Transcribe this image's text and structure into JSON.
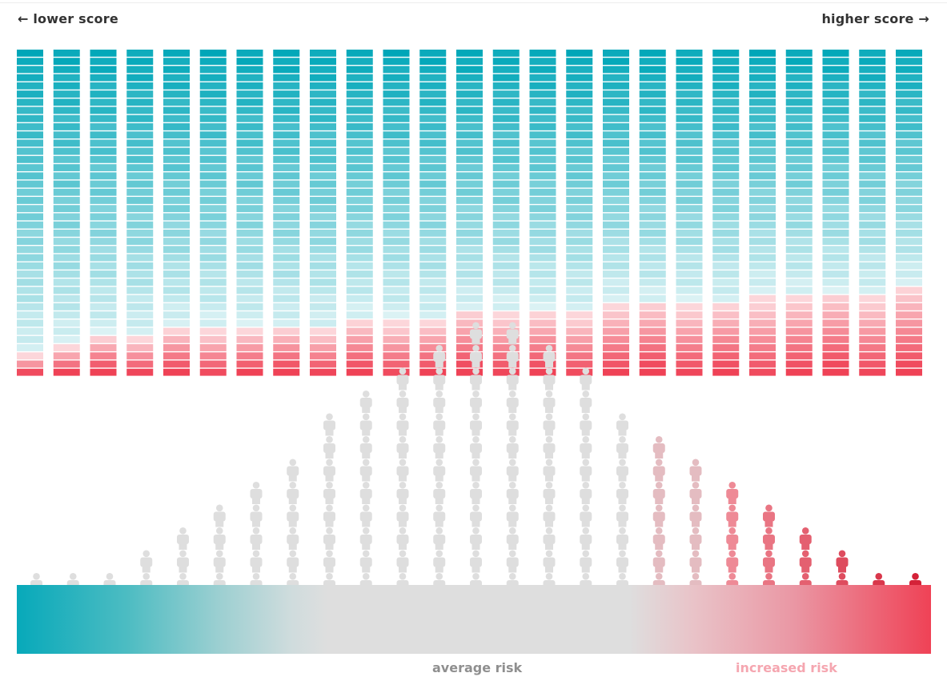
{
  "header": {
    "left_label": "← lower score",
    "right_label": "higher score →"
  },
  "footer": {
    "average_label": "average risk",
    "increased_label": "increased risk"
  },
  "colors": {
    "blue_dark": "#07a9ba",
    "blue_light": "#d3eff2",
    "red_light": "#fcd6da",
    "red_dark": "#ef4256",
    "grey": "#dedede",
    "pink_figure": "#e4bcc1"
  },
  "chart_data": {
    "type": "bar",
    "stacked_percent": true,
    "segments_per_bar": 40,
    "series": [
      {
        "name": "",
        "values": [
          8,
          10,
          12,
          12,
          14,
          14,
          14,
          16,
          16,
          18,
          18,
          18,
          20,
          20,
          20,
          20,
          22,
          22,
          22,
          22,
          24,
          24,
          24,
          26,
          28
        ]
      }
    ],
    "population": {
      "type": "figure_histogram",
      "counts": [
        1,
        1,
        1,
        2,
        3,
        4,
        5,
        6,
        8,
        9,
        10,
        11,
        12,
        12,
        11,
        10,
        8,
        7,
        6,
        5,
        4,
        3,
        2,
        1,
        1
      ],
      "color_groups": [
        "blue",
        "blue",
        "grey",
        "grey",
        "grey",
        "grey",
        "grey",
        "grey",
        "grey",
        "grey",
        "grey",
        "grey",
        "grey",
        "grey",
        "grey",
        "grey",
        "grey",
        "pink",
        "pink",
        "red",
        "red",
        "red",
        "red",
        "red",
        "red"
      ]
    }
  }
}
